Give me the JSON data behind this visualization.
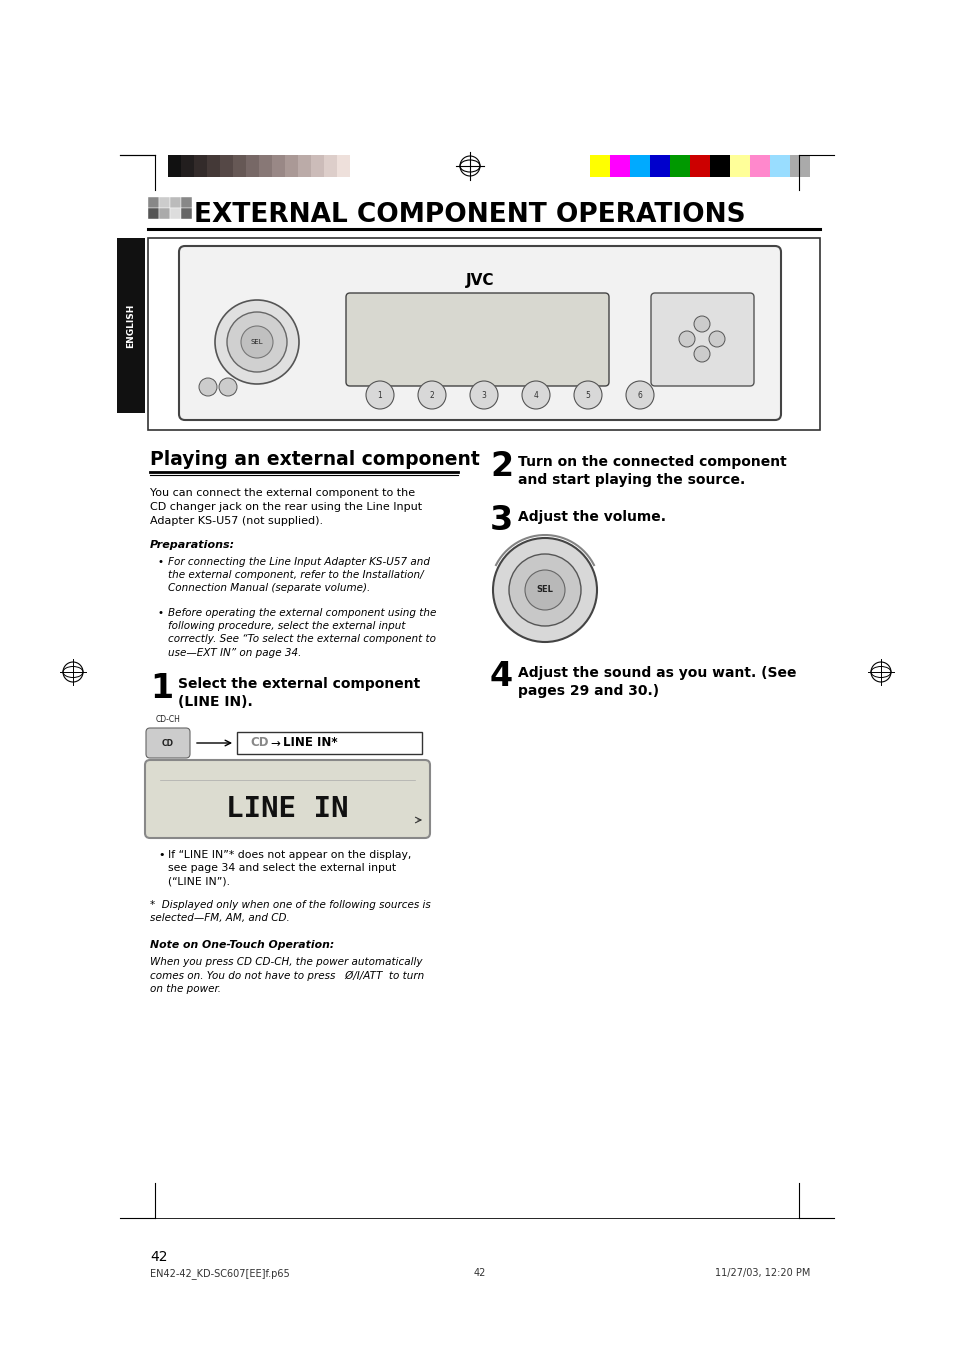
{
  "page_bg": "#ffffff",
  "page_width": 9.54,
  "page_height": 13.51,
  "dpi": 100,
  "color_bar_left_colors": [
    "#111111",
    "#221e1e",
    "#332b2a",
    "#443937",
    "#554846",
    "#665855",
    "#776866",
    "#887876",
    "#998886",
    "#aa9996",
    "#bbaba8",
    "#ccbcb9",
    "#ddceca",
    "#eee0db",
    "#ffffff"
  ],
  "color_bar_right_colors": [
    "#ffff00",
    "#ff00ff",
    "#00aaff",
    "#0000cc",
    "#009900",
    "#cc0000",
    "#000000",
    "#ffff99",
    "#ff88cc",
    "#99ddff",
    "#aaaaaa"
  ],
  "title_text": "EXTERNAL COMPONENT OPERATIONS",
  "section_title": "Playing an external component",
  "body_text_left": "You can connect the external component to the\nCD changer jack on the rear using the Line Input\nAdapter KS-U57 (not supplied).",
  "prep_title": "Preparations:",
  "prep_bullet1": "For connecting the Line Input Adapter KS-U57 and\nthe external component, refer to the Installation/\nConnection Manual (separate volume).",
  "prep_bullet2": "Before operating the external component using the\nfollowing procedure, select the external input\ncorrectly. See “To select the external component to\nuse—EXT IN” on page 34.",
  "step1_num": "1",
  "step1_text": "Select the external component\n(LINE IN).",
  "step2_num": "2",
  "step2_text": "Turn on the connected component\nand start playing the source.",
  "step3_num": "3",
  "step3_text": "Adjust the volume.",
  "step4_num": "4",
  "step4_text": "Adjust the sound as you want. (See\npages 29 and 30.)",
  "bullet1_text": "If “LINE IN”* does not appear on the display,\nsee page 34 and select the external input\n(“LINE IN”).",
  "bullet2_text": "Displayed only when one of the following sources is\nselected—FM, AM, and CD.",
  "note_title": "Note on One-Touch Operation:",
  "note_text": "When you press CD CD-CH, the power automatically\ncomes on. You do not have to press   Ø/I/ATT  to turn\non the power.",
  "page_num": "42",
  "footer_left": "EN42-42_KD-SC607[EE]f.p65",
  "footer_mid": "42",
  "footer_right": "11/27/03, 12:20 PM",
  "english_tab_text": "ENGLISH",
  "english_tab_bg": "#111111",
  "english_tab_fg": "#ffffff"
}
